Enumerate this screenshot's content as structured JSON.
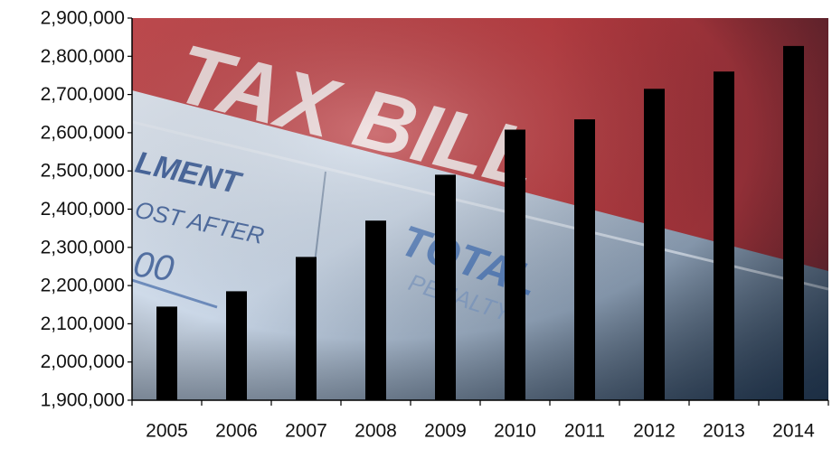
{
  "chart_data": {
    "type": "bar",
    "title": "",
    "xlabel": "",
    "ylabel": "",
    "categories": [
      "2005",
      "2006",
      "2007",
      "2008",
      "2009",
      "2010",
      "2011",
      "2012",
      "2013",
      "2014"
    ],
    "series": [
      {
        "values": [
          2145000,
          2185000,
          2275000,
          2370000,
          2490000,
          2608000,
          2635000,
          2715000,
          2760000,
          2827000
        ],
        "color": "#000000"
      }
    ],
    "ylim": [
      1900000,
      2900000
    ],
    "yticks": [
      1900000,
      2000000,
      2100000,
      2200000,
      2300000,
      2400000,
      2500000,
      2600000,
      2700000,
      2800000,
      2900000
    ],
    "ytick_labels": [
      "1,900,000",
      "2,000,000",
      "2,100,000",
      "2,200,000",
      "2,300,000",
      "2,400,000",
      "2,500,000",
      "2,600,000",
      "2,700,000",
      "2,800,000",
      "2,900,000"
    ],
    "grid": false,
    "legend": "none",
    "background_image": {
      "stamp_lettering": "TAX BILL",
      "form_fragments": [
        "LMENT",
        "OST AFTER",
        "00",
        "TOTAL",
        "PENALTY"
      ],
      "colors": {
        "band_red": "#b83a3f",
        "paper_blue": "#c9d6e6",
        "paper_shadow": "#2f4660"
      }
    }
  }
}
